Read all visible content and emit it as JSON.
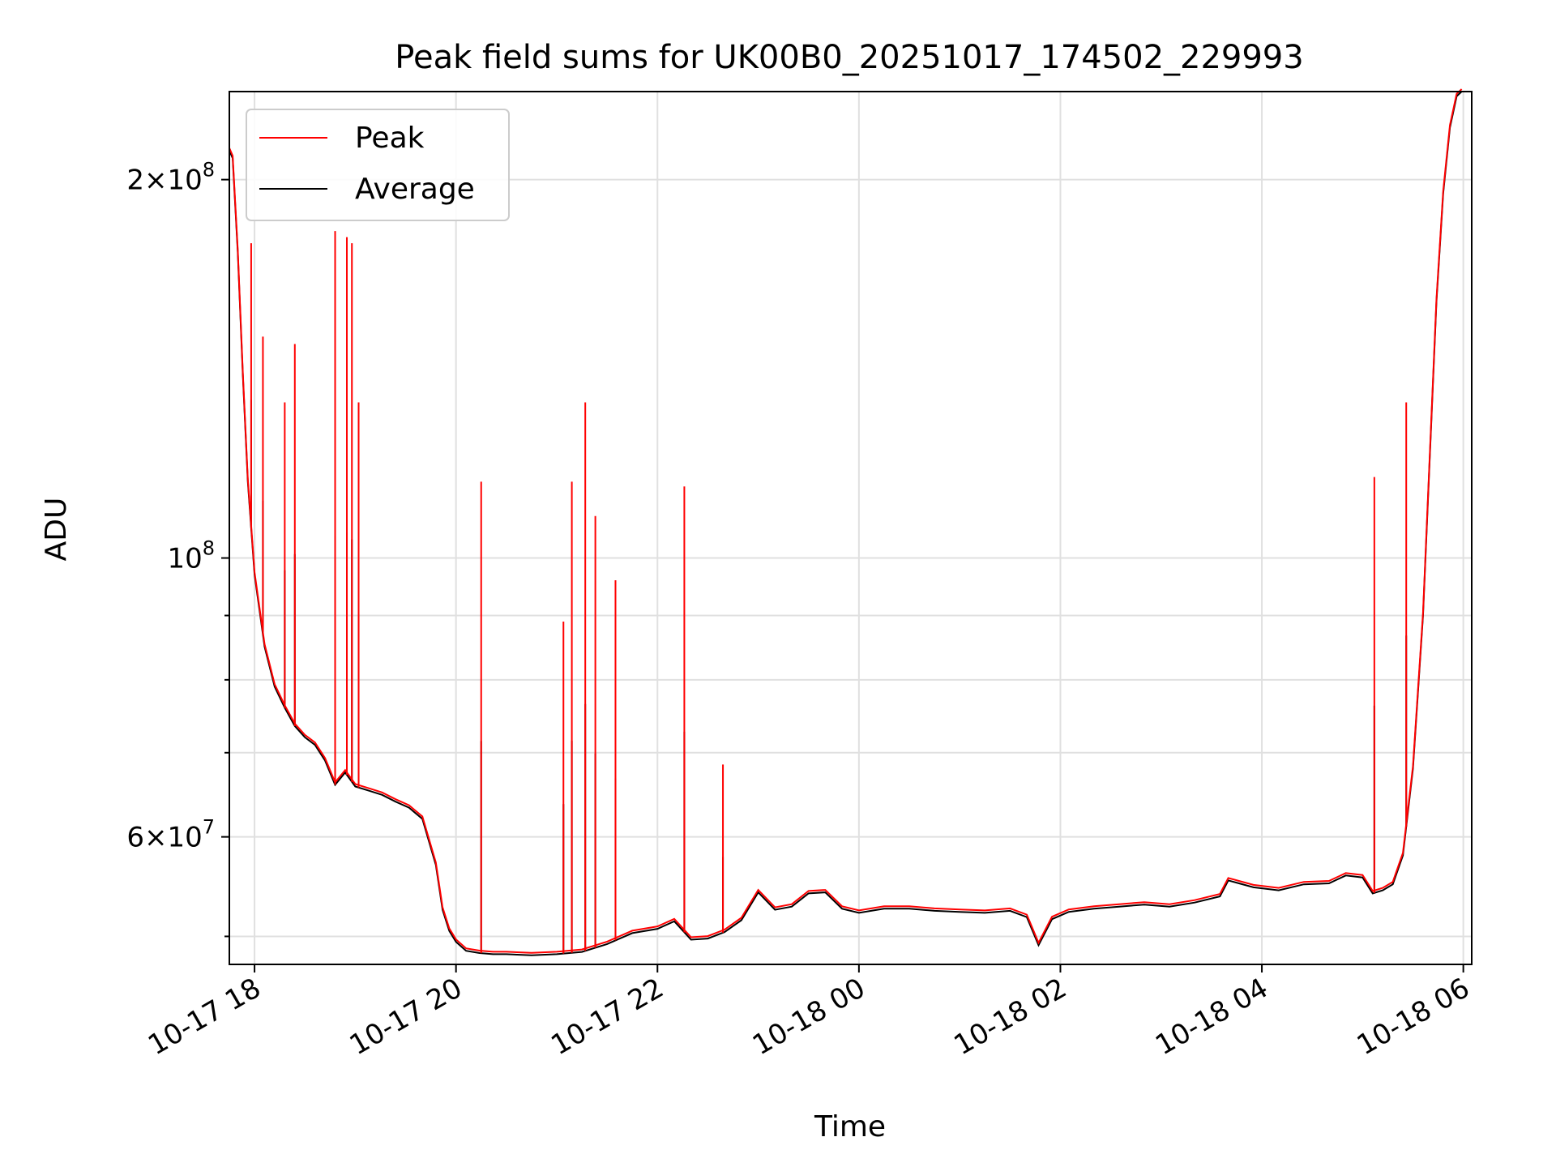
{
  "chart_data": {
    "type": "line",
    "title": "Peak field sums for UK00B0_20251017_174502_229993",
    "xlabel": "Time",
    "ylabel": "ADU",
    "yscale": "log",
    "ylim": [
      47500000,
      235000000
    ],
    "xlim": [
      "2025-10-17 17:45",
      "2025-10-18 06:05"
    ],
    "grid": true,
    "legend": {
      "position": "top-left",
      "entries": [
        "Peak",
        "Average"
      ]
    },
    "x_ticks": [
      "10-17 18",
      "10-17 20",
      "10-17 22",
      "10-18 00",
      "10-18 02",
      "10-18 04",
      "10-18 06"
    ],
    "y_ticks": [
      {
        "value": 200000000,
        "mantissa": "2",
        "exponent": "8"
      },
      {
        "value": 100000000,
        "mantissa": "",
        "exponent": "8"
      },
      {
        "value": 60000000,
        "mantissa": "6",
        "exponent": "7"
      }
    ],
    "y_minor_ticks": [
      50000000,
      70000000,
      80000000,
      90000000
    ],
    "colors": {
      "peak": "#ff0000",
      "average": "#000000",
      "grid": "#e0e0e0"
    },
    "series": [
      {
        "name": "Average",
        "color": "#000000",
        "x": [
          "2025-10-17 17:45",
          "2025-10-17 17:47",
          "2025-10-17 17:50",
          "2025-10-17 17:53",
          "2025-10-17 17:56",
          "2025-10-17 18:00",
          "2025-10-17 18:06",
          "2025-10-17 18:12",
          "2025-10-17 18:18",
          "2025-10-17 18:24",
          "2025-10-17 18:30",
          "2025-10-17 18:36",
          "2025-10-17 18:42",
          "2025-10-17 18:48",
          "2025-10-17 18:54",
          "2025-10-17 19:00",
          "2025-10-17 19:08",
          "2025-10-17 19:16",
          "2025-10-17 19:24",
          "2025-10-17 19:32",
          "2025-10-17 19:40",
          "2025-10-17 19:48",
          "2025-10-17 19:52",
          "2025-10-17 19:56",
          "2025-10-17 20:00",
          "2025-10-17 20:06",
          "2025-10-17 20:14",
          "2025-10-17 20:22",
          "2025-10-17 20:30",
          "2025-10-17 20:45",
          "2025-10-17 21:00",
          "2025-10-17 21:15",
          "2025-10-17 21:30",
          "2025-10-17 21:45",
          "2025-10-17 22:00",
          "2025-10-17 22:10",
          "2025-10-17 22:20",
          "2025-10-17 22:30",
          "2025-10-17 22:40",
          "2025-10-17 22:50",
          "2025-10-17 23:00",
          "2025-10-17 23:10",
          "2025-10-17 23:20",
          "2025-10-17 23:30",
          "2025-10-17 23:40",
          "2025-10-17 23:50",
          "2025-10-18 00:00",
          "2025-10-18 00:15",
          "2025-10-18 00:30",
          "2025-10-18 00:45",
          "2025-10-18 01:00",
          "2025-10-18 01:15",
          "2025-10-18 01:30",
          "2025-10-18 01:40",
          "2025-10-18 01:47",
          "2025-10-18 01:55",
          "2025-10-18 02:05",
          "2025-10-18 02:20",
          "2025-10-18 02:35",
          "2025-10-18 02:50",
          "2025-10-18 03:05",
          "2025-10-18 03:20",
          "2025-10-18 03:35",
          "2025-10-18 03:40",
          "2025-10-18 03:55",
          "2025-10-18 04:10",
          "2025-10-18 04:25",
          "2025-10-18 04:40",
          "2025-10-18 04:50",
          "2025-10-18 05:00",
          "2025-10-18 05:06",
          "2025-10-18 05:12",
          "2025-10-18 05:18",
          "2025-10-18 05:24",
          "2025-10-18 05:30",
          "2025-10-18 05:36",
          "2025-10-18 05:40",
          "2025-10-18 05:44",
          "2025-10-18 05:48",
          "2025-10-18 05:52",
          "2025-10-18 05:56",
          "2025-10-18 05:59"
        ],
        "values": [
          211000000,
          208000000,
          175000000,
          140000000,
          115000000,
          97000000,
          85000000,
          79000000,
          76000000,
          73500000,
          72000000,
          71000000,
          69000000,
          66000000,
          67500000,
          65800000,
          65300000,
          64800000,
          64000000,
          63300000,
          62000000,
          57000000,
          52500000,
          50500000,
          49500000,
          48700000,
          48500000,
          48400000,
          48400000,
          48300000,
          48400000,
          48600000,
          49300000,
          50300000,
          50700000,
          51400000,
          49700000,
          49800000,
          50400000,
          51500000,
          54200000,
          52500000,
          52800000,
          54100000,
          54200000,
          52600000,
          52200000,
          52600000,
          52600000,
          52400000,
          52300000,
          52200000,
          52400000,
          51800000,
          49200000,
          51600000,
          52300000,
          52600000,
          52800000,
          53000000,
          52800000,
          53200000,
          53800000,
          55400000,
          54700000,
          54400000,
          55000000,
          55100000,
          55900000,
          55700000,
          54100000,
          54400000,
          55000000,
          58000000,
          68000000,
          90000000,
          120000000,
          160000000,
          195000000,
          220000000,
          233000000,
          235000000
        ]
      },
      {
        "name": "Peak",
        "color": "#ff0000",
        "spikes": [
          {
            "x": "2025-10-17 17:58",
            "value": 178000000
          },
          {
            "x": "2025-10-17 18:05",
            "value": 150000000
          },
          {
            "x": "2025-10-17 18:18",
            "value": 133000000
          },
          {
            "x": "2025-10-17 18:24",
            "value": 148000000
          },
          {
            "x": "2025-10-17 18:48",
            "value": 182000000
          },
          {
            "x": "2025-10-17 18:55",
            "value": 180000000
          },
          {
            "x": "2025-10-17 18:58",
            "value": 178000000
          },
          {
            "x": "2025-10-17 19:02",
            "value": 133000000
          },
          {
            "x": "2025-10-17 20:15",
            "value": 115000000
          },
          {
            "x": "2025-10-17 21:04",
            "value": 89000000
          },
          {
            "x": "2025-10-17 21:09",
            "value": 115000000
          },
          {
            "x": "2025-10-17 21:17",
            "value": 133000000
          },
          {
            "x": "2025-10-17 21:23",
            "value": 108000000
          },
          {
            "x": "2025-10-17 21:35",
            "value": 96000000
          },
          {
            "x": "2025-10-17 22:16",
            "value": 114000000
          },
          {
            "x": "2025-10-17 22:39",
            "value": 68500000
          },
          {
            "x": "2025-10-18 05:07",
            "value": 116000000
          },
          {
            "x": "2025-10-18 05:26",
            "value": 133000000
          }
        ]
      }
    ]
  }
}
